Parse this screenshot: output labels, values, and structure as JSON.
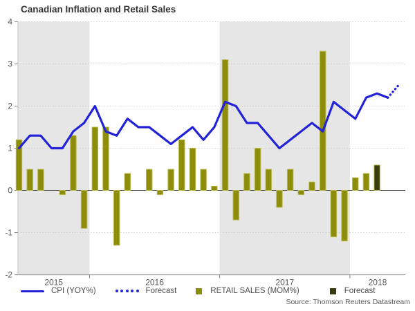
{
  "title": "Canadian Inflation and Retail Sales",
  "source": "Source: Thomson Reuters Datastream",
  "legend": {
    "cpi": {
      "label": "CPI (YOY%)",
      "color": "#2222d8"
    },
    "cpi_forecast": {
      "label": "Forecast",
      "color": "#2222d8"
    },
    "retail": {
      "label": "RETAIL SALES (MOM%)",
      "color": "#8d8d0b"
    },
    "retail_forecast": {
      "label": "Forecast",
      "color": "#33330d"
    }
  },
  "colors": {
    "band": "#e6e6e6",
    "grid": "#cbcbcb",
    "zero_line": "#4d4d4d",
    "axis": "#a0a0a0",
    "left_spine": "#c4c4c4",
    "tick": "#808080",
    "text": "#595959",
    "cpi_line": "#2222d8",
    "bar_fill": "#8d8d0b",
    "bar_border": "#b9b94a",
    "forecast_bar_fill": "#3a3a0d"
  },
  "chart_data": {
    "type": "mixed line + bar",
    "title": "Canadian Inflation and Retail Sales",
    "ylim": [
      -2,
      4
    ],
    "yticks": [
      "4",
      "3",
      "2",
      "1",
      "0",
      "-1",
      "-2"
    ],
    "ytick_values": [
      4,
      3,
      2,
      1,
      0,
      -1,
      -2
    ],
    "grid": "dotted horizontal",
    "legend_position": "bottom",
    "year_labels": [
      "2015",
      "2016",
      "2017",
      "2018"
    ],
    "shaded_years": [
      "2015 (partial, Jun-Dec)",
      "2017"
    ],
    "months": [
      "2015-06",
      "2015-07",
      "2015-08",
      "2015-09",
      "2015-10",
      "2015-11",
      "2015-12",
      "2016-01",
      "2016-02",
      "2016-03",
      "2016-04",
      "2016-05",
      "2016-06",
      "2016-07",
      "2016-08",
      "2016-09",
      "2016-10",
      "2016-11",
      "2016-12",
      "2017-01",
      "2017-02",
      "2017-03",
      "2017-04",
      "2017-05",
      "2017-06",
      "2017-07",
      "2017-08",
      "2017-09",
      "2017-10",
      "2017-11",
      "2017-12",
      "2018-01",
      "2018-02",
      "2018-03",
      "2018-04",
      "2018-05"
    ],
    "series": [
      {
        "name": "CPI (YOY%)",
        "type": "line",
        "values": [
          1.0,
          1.3,
          1.3,
          1.0,
          1.0,
          1.4,
          1.6,
          2.0,
          1.4,
          1.3,
          1.7,
          1.5,
          1.5,
          1.3,
          1.1,
          1.3,
          1.5,
          1.2,
          1.5,
          2.1,
          2.0,
          1.6,
          1.6,
          1.3,
          1.0,
          1.2,
          1.4,
          1.6,
          1.4,
          2.1,
          1.9,
          1.7,
          2.2,
          2.3,
          2.2,
          null
        ]
      },
      {
        "name": "CPI Forecast",
        "type": "line-dotted",
        "values": [
          null,
          null,
          null,
          null,
          null,
          null,
          null,
          null,
          null,
          null,
          null,
          null,
          null,
          null,
          null,
          null,
          null,
          null,
          null,
          null,
          null,
          null,
          null,
          null,
          null,
          null,
          null,
          null,
          null,
          null,
          null,
          null,
          null,
          null,
          2.2,
          2.5
        ]
      },
      {
        "name": "RETAIL SALES (MOM%)",
        "type": "bar",
        "values": [
          1.2,
          0.5,
          0.5,
          0,
          -0.1,
          1.3,
          -0.9,
          1.5,
          1.5,
          -1.3,
          0.4,
          0,
          0.5,
          -0.1,
          0.5,
          1.2,
          1.0,
          0.5,
          0.1,
          3.1,
          -0.7,
          0.4,
          1.0,
          0.5,
          -0.4,
          0.5,
          -0.1,
          0.2,
          3.3,
          -1.1,
          -1.2,
          0.3,
          0.4,
          null,
          null,
          null
        ]
      },
      {
        "name": "Retail Sales Forecast",
        "type": "bar",
        "values": [
          null,
          null,
          null,
          null,
          null,
          null,
          null,
          null,
          null,
          null,
          null,
          null,
          null,
          null,
          null,
          null,
          null,
          null,
          null,
          null,
          null,
          null,
          null,
          null,
          null,
          null,
          null,
          null,
          null,
          null,
          null,
          null,
          null,
          0.6,
          null,
          null
        ]
      }
    ]
  }
}
